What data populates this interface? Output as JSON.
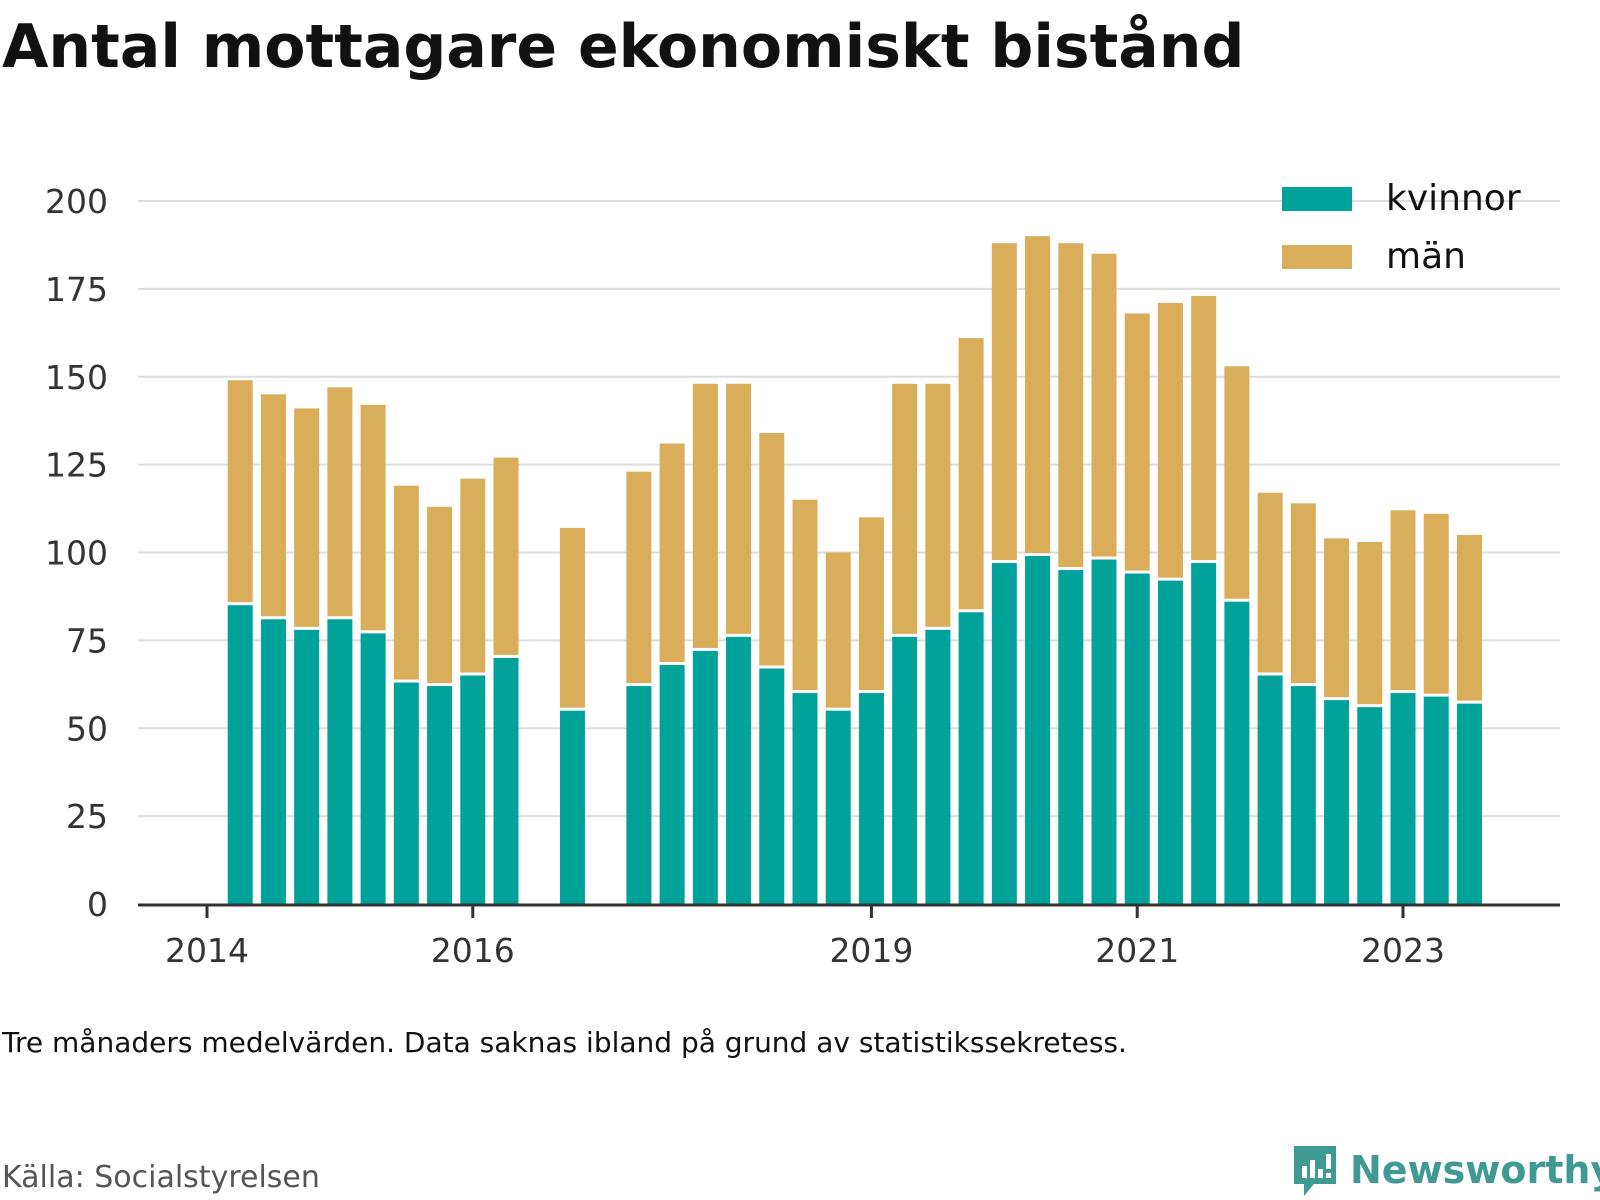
{
  "title": "Antal mottagare ekonomiskt bistånd",
  "note": "Tre månaders medelvärden. Data saknas ibland på grund av statistikssekretess.",
  "source": "Källa: Socialstyrelsen",
  "brand": {
    "name": "Newsworthy",
    "icon": "newsworthy-logo-icon"
  },
  "colors": {
    "kvinnor": "#00a29a",
    "man": "#d9ad5a",
    "grid": "#dddddd",
    "axis": "#333333"
  },
  "chart_data": {
    "type": "bar",
    "stacked": true,
    "legend": {
      "placement": "top-right"
    },
    "grid": true,
    "ylim": [
      0,
      200
    ],
    "yticks": [
      "0",
      "25",
      "50",
      "75",
      "100",
      "125",
      "150",
      "175",
      "200"
    ],
    "xticks": [
      {
        "label": "2014",
        "value": 2014.0
      },
      {
        "label": "2016",
        "value": 2016.0
      },
      {
        "label": "2019",
        "value": 2019.0
      },
      {
        "label": "2021",
        "value": 2021.0
      },
      {
        "label": "2023",
        "value": 2023.0
      }
    ],
    "x": [
      2014.25,
      2014.5,
      2014.75,
      2015.0,
      2015.25,
      2015.5,
      2015.75,
      2016.0,
      2016.25,
      2016.75,
      2017.25,
      2017.5,
      2017.75,
      2018.0,
      2018.25,
      2018.5,
      2018.75,
      2019.0,
      2019.25,
      2019.5,
      2019.75,
      2020.0,
      2020.25,
      2020.5,
      2020.75,
      2021.0,
      2021.25,
      2021.5,
      2021.75,
      2022.0,
      2022.25,
      2022.5,
      2022.75,
      2023.0,
      2023.25,
      2023.5
    ],
    "series": [
      {
        "name": "kvinnor",
        "values": [
          85,
          81,
          78,
          81,
          77,
          63,
          62,
          65,
          70,
          55,
          62,
          68,
          72,
          76,
          67,
          60,
          55,
          60,
          76,
          78,
          83,
          97,
          99,
          95,
          98,
          94,
          92,
          97,
          86,
          65,
          62,
          58,
          56,
          60,
          59,
          57
        ]
      },
      {
        "name": "män",
        "values": [
          64,
          64,
          63,
          66,
          65,
          56,
          51,
          56,
          57,
          52,
          61,
          63,
          76,
          72,
          67,
          55,
          45,
          50,
          72,
          70,
          78,
          91,
          91,
          93,
          87,
          74,
          79,
          76,
          67,
          52,
          52,
          46,
          47,
          52,
          52,
          48
        ]
      }
    ]
  }
}
